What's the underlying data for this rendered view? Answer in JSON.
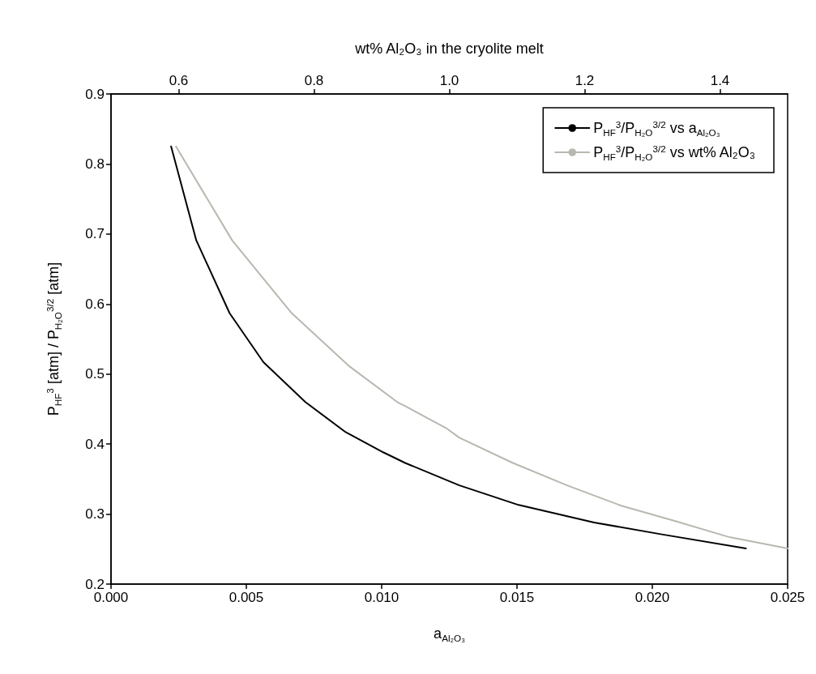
{
  "chart_data": {
    "type": "line",
    "xlabel": "a$_{Al₂O₃}$",
    "ylabel": "P$_{HF}$$^{3}$ [atm] / P$_{H₂O}$$^{3/2}$ [atm]",
    "x2label": "wt% Al₂O₃ in the cryolite melt",
    "xlim": [
      0,
      0.025
    ],
    "xticks": [
      {
        "value": 0,
        "label": "0.000"
      },
      {
        "value": 0.005,
        "label": "0.005"
      },
      {
        "value": 0.01,
        "label": "0.010"
      },
      {
        "value": 0.015,
        "label": "0.015"
      },
      {
        "value": 0.02,
        "label": "0.020"
      },
      {
        "value": 0.025,
        "label": "0.025"
      }
    ],
    "x2lim": [
      0.5,
      1.5
    ],
    "x2ticks": [
      0.6,
      0.8,
      {
        "value": 1,
        "label": "1.0"
      },
      1.2,
      1.4
    ],
    "ylim": [
      0.2,
      0.9
    ],
    "yticks": [
      0.2,
      0.3,
      0.4,
      0.5,
      0.6,
      0.7,
      0.8,
      0.9
    ],
    "grid": false,
    "legend": "top right",
    "series": [
      {
        "name": "P$_{HF}$$^{3}$/P$_{H₂O}$$^{3/2}$ vs a$_{Al₂O₃}$",
        "color": "#000000",
        "x": [
          0.00222,
          0.00315,
          0.00438,
          0.00563,
          0.00718,
          0.00867,
          0.01007,
          0.01087,
          0.01287,
          0.01506,
          0.01785,
          0.02035,
          0.02346
        ],
        "values": [
          0.825,
          0.691,
          0.587,
          0.517,
          0.46,
          0.417,
          0.388,
          0.373,
          0.341,
          0.313,
          0.288,
          0.271,
          0.251
        ]
      },
      {
        "name": "P$_{HF}$$^{3}$/P$_{H₂O}$$^{3/2}$ vs wt% Al₂O₃",
        "color": "#b8b8b0",
        "axis": "x2",
        "x": [
          0.596,
          0.679,
          0.767,
          0.851,
          0.923,
          0.935,
          0.995,
          1.015,
          1.094,
          1.174,
          1.254,
          1.334,
          1.414,
          1.5
        ],
        "values": [
          0.825,
          0.691,
          0.587,
          0.512,
          0.46,
          0.454,
          0.423,
          0.409,
          0.373,
          0.341,
          0.312,
          0.29,
          0.267,
          0.251
        ]
      }
    ]
  }
}
